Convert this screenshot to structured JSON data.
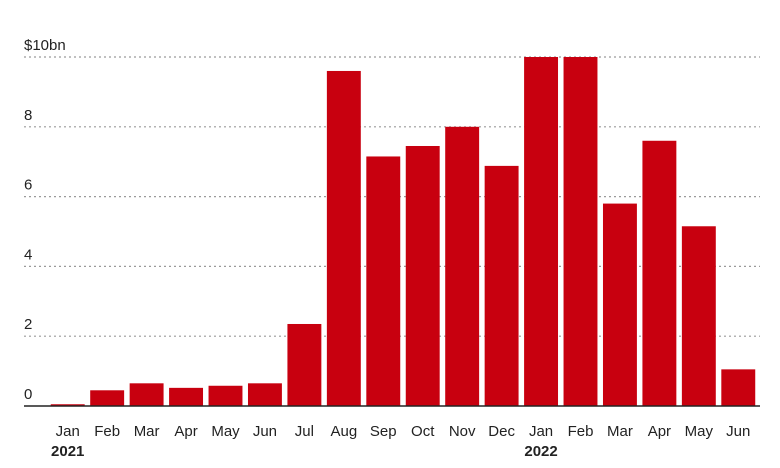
{
  "chart_data": {
    "type": "bar",
    "title": "",
    "xlabel": "",
    "ylabel": "",
    "unit_label": "$10bn",
    "categories": [
      "Jan",
      "Feb",
      "Mar",
      "Apr",
      "May",
      "Jun",
      "Jul",
      "Aug",
      "Sep",
      "Oct",
      "Nov",
      "Dec",
      "Jan",
      "Feb",
      "Mar",
      "Apr",
      "May",
      "Jun"
    ],
    "year_labels": [
      {
        "category_index": 0,
        "label": "2021"
      },
      {
        "category_index": 12,
        "label": "2022"
      }
    ],
    "values": [
      0.05,
      0.45,
      0.65,
      0.52,
      0.58,
      0.65,
      2.35,
      9.6,
      7.15,
      7.45,
      8.0,
      6.88,
      10.0,
      10.0,
      5.8,
      7.6,
      5.15,
      1.05
    ],
    "ylim": [
      0,
      10
    ],
    "yticks": [
      {
        "value": 0,
        "label": "0"
      },
      {
        "value": 2,
        "label": "2"
      },
      {
        "value": 4,
        "label": "4"
      },
      {
        "value": 6,
        "label": "6"
      },
      {
        "value": 8,
        "label": "8"
      },
      {
        "value": 10,
        "label": "$10bn"
      }
    ],
    "grid": true,
    "bar_color": "#c8000f",
    "grid_color": "#9a9a9a",
    "axis_color": "#222222"
  }
}
